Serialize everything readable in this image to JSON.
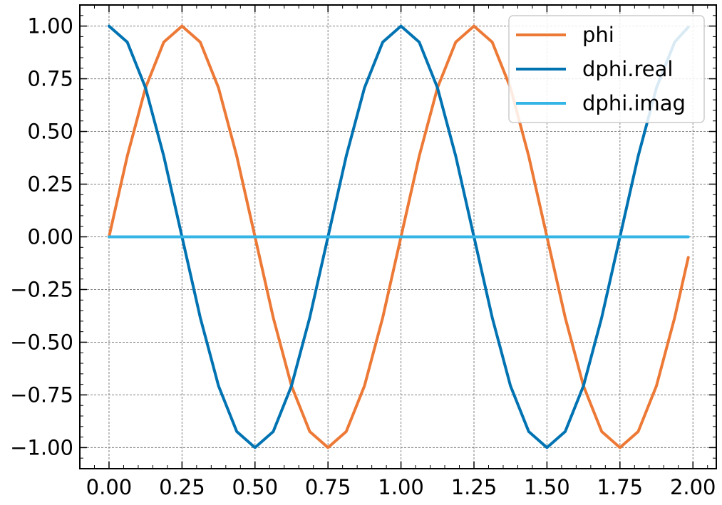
{
  "chart_data": {
    "type": "line",
    "title": "",
    "xlabel": "",
    "ylabel": "",
    "xlim": [
      -0.1,
      2.08
    ],
    "ylim": [
      -1.1,
      1.1
    ],
    "x_ticks": [
      0,
      0.25,
      0.5,
      0.75,
      1.0,
      1.25,
      1.5,
      1.75,
      2.0
    ],
    "x_tick_labels": [
      "0.00",
      "0.25",
      "0.50",
      "0.75",
      "1.00",
      "1.25",
      "1.50",
      "1.75",
      "2.00"
    ],
    "y_ticks": [
      1.0,
      0.75,
      0.5,
      0.25,
      0,
      -0.25,
      -0.5,
      -0.75,
      -1.0
    ],
    "y_tick_labels": [
      "1.00",
      "0.75",
      "0.50",
      "0.25",
      "0.00",
      "−0.25",
      "−0.50",
      "−0.75",
      "−1.00"
    ],
    "grid": true,
    "legend_position": "top-right",
    "x": [
      0.0,
      0.0625,
      0.125,
      0.1875,
      0.25,
      0.3125,
      0.375,
      0.4375,
      0.5,
      0.5625,
      0.625,
      0.6875,
      0.75,
      0.8125,
      0.875,
      0.9375,
      1.0,
      1.0625,
      1.125,
      1.1875,
      1.25,
      1.3125,
      1.375,
      1.4375,
      1.5,
      1.5625,
      1.625,
      1.6875,
      1.75,
      1.8125,
      1.875,
      1.9375,
      1.984
    ],
    "series": [
      {
        "name": "phi",
        "color": "#ed7936",
        "values": [
          0.0,
          0.383,
          0.707,
          0.924,
          1.0,
          0.924,
          0.707,
          0.383,
          0.0,
          -0.383,
          -0.707,
          -0.924,
          -1.0,
          -0.924,
          -0.707,
          -0.383,
          0.0,
          0.383,
          0.707,
          0.924,
          1.0,
          0.924,
          0.707,
          0.383,
          0.0,
          -0.383,
          -0.707,
          -0.924,
          -1.0,
          -0.924,
          -0.707,
          -0.383,
          -0.098
        ]
      },
      {
        "name": "dphi.real",
        "color": "#0173b2",
        "values": [
          1.0,
          0.924,
          0.707,
          0.383,
          0.0,
          -0.383,
          -0.707,
          -0.924,
          -1.0,
          -0.924,
          -0.707,
          -0.383,
          0.0,
          0.383,
          0.707,
          0.924,
          1.0,
          0.924,
          0.707,
          0.383,
          0.0,
          -0.383,
          -0.707,
          -0.924,
          -1.0,
          -0.924,
          -0.707,
          -0.383,
          0.0,
          0.383,
          0.707,
          0.924,
          0.995
        ]
      },
      {
        "name": "dphi.imag",
        "color": "#35b5e5",
        "values": [
          0,
          0,
          0,
          0,
          0,
          0,
          0,
          0,
          0,
          0,
          0,
          0,
          0,
          0,
          0,
          0,
          0,
          0,
          0,
          0,
          0,
          0,
          0,
          0,
          0,
          0,
          0,
          0,
          0,
          0,
          0,
          0,
          0
        ]
      }
    ]
  }
}
